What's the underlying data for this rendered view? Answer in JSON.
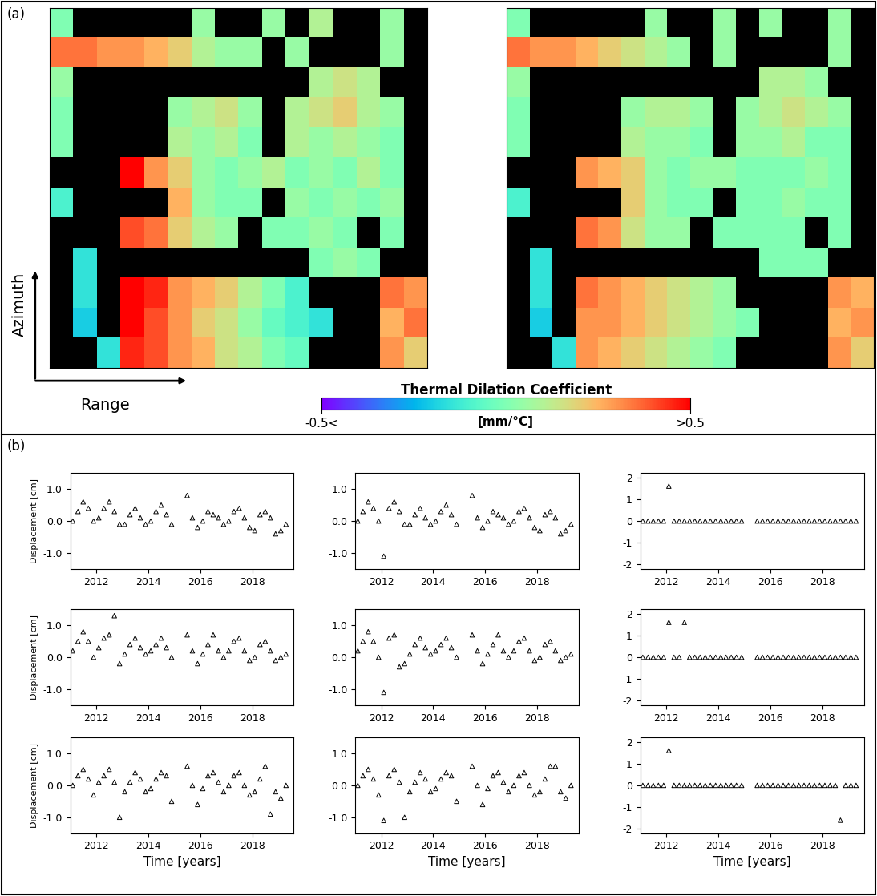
{
  "chart_data": [
    {
      "type": "heatmap",
      "panel_label": "(a)",
      "x_label": "Range",
      "y_label": "Azimuth",
      "tick_labels": false,
      "colorbar": {
        "title": "Thermal Dilation Coefficient",
        "unit": "[mm/°C]",
        "range": [
          -0.5,
          0.5
        ],
        "ticks": [
          {
            "value": -0.5,
            "label": "-0.5<"
          },
          {
            "value": 0.5,
            "label": ">0.5"
          }
        ]
      },
      "cells": [
        [
          0.0,
          null,
          null,
          null,
          null,
          null,
          0.05,
          null,
          null,
          0.05,
          null,
          0.1,
          null,
          null,
          0.05,
          null
        ],
        [
          0.35,
          0.35,
          0.3,
          0.3,
          0.25,
          0.2,
          0.1,
          0.05,
          0.05,
          null,
          0.05,
          null,
          null,
          null,
          0.05,
          null
        ],
        [
          0.05,
          null,
          null,
          null,
          null,
          null,
          null,
          null,
          null,
          null,
          null,
          0.1,
          0.15,
          0.1,
          null,
          null
        ],
        [
          0.0,
          null,
          null,
          null,
          null,
          0.05,
          0.1,
          0.15,
          0.05,
          null,
          0.1,
          0.15,
          0.2,
          0.1,
          0.05,
          null
        ],
        [
          0.0,
          null,
          null,
          null,
          null,
          0.1,
          0.05,
          0.1,
          0.0,
          null,
          0.1,
          0.05,
          0.1,
          0.05,
          0.0,
          null
        ],
        [
          null,
          null,
          null,
          0.5,
          0.3,
          0.2,
          0.05,
          0.0,
          0.05,
          0.1,
          0.0,
          0.05,
          0.0,
          0.1,
          0.0,
          null
        ],
        [
          -0.1,
          null,
          null,
          null,
          null,
          0.25,
          0.05,
          0.0,
          0.0,
          null,
          0.05,
          0.0,
          0.05,
          0.0,
          0.05,
          null
        ],
        [
          null,
          null,
          null,
          0.4,
          0.35,
          0.2,
          0.1,
          0.05,
          null,
          0.0,
          0.0,
          0.05,
          0.0,
          null,
          0.0,
          null
        ],
        [
          null,
          -0.15,
          null,
          null,
          null,
          null,
          null,
          null,
          null,
          null,
          null,
          0.0,
          0.05,
          0.0,
          null,
          null
        ],
        [
          null,
          -0.15,
          null,
          0.5,
          0.45,
          0.3,
          0.25,
          0.2,
          0.1,
          0.0,
          -0.1,
          null,
          null,
          null,
          0.35,
          0.3
        ],
        [
          null,
          -0.2,
          null,
          0.5,
          0.4,
          0.3,
          0.2,
          0.15,
          0.05,
          -0.05,
          -0.1,
          -0.15,
          null,
          null,
          0.25,
          0.35
        ],
        [
          null,
          null,
          -0.15,
          0.45,
          0.4,
          0.3,
          0.25,
          0.15,
          0.1,
          0.0,
          -0.05,
          null,
          null,
          null,
          0.3,
          0.2
        ]
      ]
    },
    {
      "type": "heatmap",
      "tick_labels": false,
      "cells": [
        [
          0.0,
          null,
          null,
          null,
          null,
          null,
          0.05,
          null,
          null,
          0.05,
          null,
          0.05,
          null,
          null,
          0.05,
          null
        ],
        [
          0.35,
          0.3,
          0.3,
          0.25,
          0.2,
          0.15,
          0.1,
          0.05,
          null,
          0.05,
          null,
          null,
          null,
          null,
          0.05,
          null
        ],
        [
          0.05,
          null,
          null,
          null,
          null,
          null,
          null,
          null,
          null,
          null,
          null,
          0.1,
          0.1,
          0.05,
          null,
          null
        ],
        [
          0.0,
          null,
          null,
          null,
          null,
          0.05,
          0.1,
          0.1,
          0.05,
          null,
          0.05,
          0.1,
          0.15,
          0.1,
          0.05,
          null
        ],
        [
          0.0,
          null,
          null,
          null,
          null,
          0.1,
          0.05,
          0.05,
          0.0,
          null,
          0.05,
          0.05,
          0.1,
          0.0,
          0.0,
          null
        ],
        [
          null,
          null,
          null,
          0.3,
          0.25,
          0.2,
          0.05,
          0.0,
          0.05,
          0.05,
          0.0,
          0.0,
          0.0,
          0.05,
          0.0,
          null
        ],
        [
          -0.1,
          null,
          null,
          null,
          null,
          0.2,
          0.05,
          0.0,
          0.0,
          null,
          0.0,
          0.0,
          0.05,
          0.0,
          0.0,
          null
        ],
        [
          null,
          null,
          null,
          0.35,
          0.3,
          0.15,
          0.05,
          0.05,
          null,
          0.0,
          0.0,
          0.0,
          0.0,
          null,
          0.0,
          null
        ],
        [
          null,
          -0.15,
          null,
          null,
          null,
          null,
          null,
          null,
          null,
          null,
          null,
          0.0,
          0.0,
          0.0,
          null,
          null
        ],
        [
          null,
          -0.15,
          null,
          0.35,
          0.3,
          0.25,
          0.2,
          0.15,
          0.1,
          0.05,
          null,
          null,
          null,
          null,
          0.3,
          0.25
        ],
        [
          null,
          -0.2,
          null,
          0.3,
          0.3,
          0.25,
          0.2,
          0.15,
          0.1,
          0.05,
          0.0,
          null,
          null,
          null,
          0.25,
          0.3
        ],
        [
          null,
          null,
          -0.15,
          0.3,
          0.25,
          0.2,
          0.15,
          0.1,
          0.05,
          0.0,
          null,
          null,
          null,
          null,
          0.3,
          0.2
        ]
      ]
    },
    {
      "type": "scatter",
      "panel_label": "(b)",
      "marker": "triangle",
      "x_label": "Time [years]",
      "y_label": "Displacement [cm]",
      "xlim": [
        2011,
        2019.6
      ],
      "xticks": [
        2012,
        2014,
        2016,
        2018
      ],
      "x": [
        2011.1,
        2011.3,
        2011.5,
        2011.7,
        2011.9,
        2012.1,
        2012.3,
        2012.5,
        2012.7,
        2012.9,
        2013.1,
        2013.3,
        2013.5,
        2013.7,
        2013.9,
        2014.1,
        2014.3,
        2014.5,
        2014.7,
        2014.9,
        2015.1,
        2015.3,
        2015.5,
        2015.7,
        2015.9,
        2016.1,
        2016.3,
        2016.5,
        2016.7,
        2016.9,
        2017.1,
        2017.3,
        2017.5,
        2017.7,
        2017.9,
        2018.1,
        2018.3,
        2018.5,
        2018.7,
        2018.9,
        2019.1,
        2019.3
      ],
      "rows": [
        [
          {
            "ylim": [
              -1.5,
              1.5
            ],
            "yticks": [
              {
                "value": -1,
                "label": "-1.0"
              },
              {
                "value": 0,
                "label": "0.0"
              },
              {
                "value": 1,
                "label": "1.0"
              }
            ],
            "values": [
              0.0,
              0.3,
              0.6,
              0.4,
              0.0,
              0.1,
              0.4,
              0.6,
              0.3,
              -0.1,
              -0.1,
              0.2,
              0.4,
              0.1,
              -0.1,
              0.0,
              0.3,
              0.5,
              0.2,
              -0.1,
              null,
              null,
              0.8,
              0.1,
              -0.2,
              0.0,
              0.3,
              0.2,
              0.1,
              -0.1,
              0.0,
              0.3,
              0.4,
              0.1,
              -0.2,
              -0.3,
              0.2,
              0.3,
              0.1,
              -0.4,
              -0.3,
              -0.1
            ]
          },
          {
            "ylim": [
              -1.5,
              1.5
            ],
            "yticks": [
              {
                "value": -1,
                "label": "-1.0"
              },
              {
                "value": 0,
                "label": "0.0"
              },
              {
                "value": 1,
                "label": "1.0"
              }
            ],
            "values": [
              0.0,
              0.3,
              0.6,
              0.4,
              0.0,
              -1.1,
              0.4,
              0.6,
              0.3,
              -0.1,
              -0.1,
              0.2,
              0.4,
              0.1,
              -0.1,
              0.0,
              0.3,
              0.5,
              0.2,
              -0.1,
              null,
              null,
              0.8,
              0.1,
              -0.2,
              0.0,
              0.3,
              0.2,
              0.1,
              -0.1,
              0.0,
              0.3,
              0.4,
              0.1,
              -0.2,
              -0.3,
              0.2,
              0.3,
              0.1,
              -0.4,
              -0.3,
              -0.1
            ]
          },
          {
            "ylim": [
              -2.2,
              2.2
            ],
            "yticks": [
              -2,
              -1,
              0,
              1,
              2
            ],
            "values": [
              0,
              0,
              0,
              0,
              0,
              1.6,
              0,
              0,
              0,
              0,
              0,
              0,
              0,
              0,
              0,
              0,
              0,
              0,
              0,
              0,
              null,
              null,
              0,
              0,
              0,
              0,
              0,
              0,
              0,
              0,
              0,
              0,
              0,
              0,
              0,
              0,
              0,
              0,
              0,
              0,
              0,
              0
            ]
          }
        ],
        [
          {
            "ylim": [
              -1.5,
              1.5
            ],
            "yticks": [
              {
                "value": -1,
                "label": "-1.0"
              },
              {
                "value": 0,
                "label": "0.0"
              },
              {
                "value": 1,
                "label": "1.0"
              }
            ],
            "values": [
              0.2,
              0.5,
              0.8,
              0.5,
              0.0,
              0.3,
              0.6,
              0.7,
              1.3,
              -0.2,
              0.1,
              0.4,
              0.6,
              0.3,
              0.1,
              0.2,
              0.4,
              0.6,
              0.3,
              0.0,
              null,
              null,
              0.7,
              0.2,
              -0.2,
              0.1,
              0.4,
              0.7,
              0.2,
              0.0,
              0.2,
              0.5,
              0.6,
              0.2,
              -0.1,
              0.0,
              0.4,
              0.5,
              0.2,
              -0.1,
              0.0,
              0.1
            ]
          },
          {
            "ylim": [
              -1.5,
              1.5
            ],
            "yticks": [
              {
                "value": -1,
                "label": "-1.0"
              },
              {
                "value": 0,
                "label": "0.0"
              },
              {
                "value": 1,
                "label": "1.0"
              }
            ],
            "values": [
              0.2,
              0.5,
              0.8,
              0.5,
              0.0,
              -1.1,
              0.6,
              0.7,
              -0.3,
              -0.2,
              0.1,
              0.4,
              0.6,
              0.3,
              0.1,
              0.2,
              0.4,
              0.6,
              0.3,
              0.0,
              null,
              null,
              0.7,
              0.2,
              -0.2,
              0.1,
              0.4,
              0.7,
              0.2,
              0.0,
              0.2,
              0.5,
              0.6,
              0.2,
              -0.1,
              0.0,
              0.4,
              0.5,
              0.2,
              -0.1,
              0.0,
              0.1
            ]
          },
          {
            "ylim": [
              -2.2,
              2.2
            ],
            "yticks": [
              -2,
              -1,
              0,
              1,
              2
            ],
            "values": [
              0,
              0,
              0,
              0,
              0,
              1.6,
              0,
              0,
              1.6,
              0,
              0,
              0,
              0,
              0,
              0,
              0,
              0,
              0,
              0,
              0,
              null,
              null,
              0,
              0,
              0,
              0,
              0,
              0,
              0,
              0,
              0,
              0,
              0,
              0,
              0,
              0,
              0,
              0,
              0,
              0,
              0,
              0
            ]
          }
        ],
        [
          {
            "ylim": [
              -1.5,
              1.5
            ],
            "yticks": [
              {
                "value": -1,
                "label": "-1.0"
              },
              {
                "value": 0,
                "label": "0.0"
              },
              {
                "value": 1,
                "label": "1.0"
              }
            ],
            "values": [
              0.0,
              0.3,
              0.5,
              0.2,
              -0.3,
              0.1,
              0.3,
              0.5,
              0.1,
              -1.0,
              -0.2,
              0.1,
              0.4,
              0.2,
              -0.2,
              -0.1,
              0.2,
              0.4,
              0.3,
              -0.5,
              null,
              null,
              0.6,
              0.0,
              -0.6,
              -0.1,
              0.3,
              0.4,
              0.1,
              -0.2,
              0.0,
              0.3,
              0.4,
              0.0,
              -0.3,
              -0.2,
              0.2,
              0.6,
              -0.9,
              -0.2,
              -0.4,
              0.0
            ]
          },
          {
            "ylim": [
              -1.5,
              1.5
            ],
            "yticks": [
              {
                "value": -1,
                "label": "-1.0"
              },
              {
                "value": 0,
                "label": "0.0"
              },
              {
                "value": 1,
                "label": "1.0"
              }
            ],
            "values": [
              0.0,
              0.3,
              0.5,
              0.2,
              -0.3,
              -1.1,
              0.3,
              0.5,
              0.1,
              -1.0,
              -0.2,
              0.1,
              0.4,
              0.2,
              -0.2,
              -0.1,
              0.2,
              0.4,
              0.3,
              -0.5,
              null,
              null,
              0.6,
              0.0,
              -0.6,
              -0.1,
              0.3,
              0.4,
              0.1,
              -0.2,
              0.0,
              0.3,
              0.4,
              0.0,
              -0.3,
              -0.2,
              0.2,
              0.6,
              0.6,
              -0.2,
              -0.4,
              0.0
            ]
          },
          {
            "ylim": [
              -2.2,
              2.2
            ],
            "yticks": [
              -2,
              -1,
              0,
              1,
              2
            ],
            "values": [
              0,
              0,
              0,
              0,
              0,
              1.6,
              0,
              0,
              0,
              0,
              0,
              0,
              0,
              0,
              0,
              0,
              0,
              0,
              0,
              0,
              null,
              null,
              0,
              0,
              0,
              0,
              0,
              0,
              0,
              0,
              0,
              0,
              0,
              0,
              0,
              0,
              0,
              0,
              -1.6,
              0,
              0,
              0
            ]
          }
        ]
      ]
    }
  ]
}
